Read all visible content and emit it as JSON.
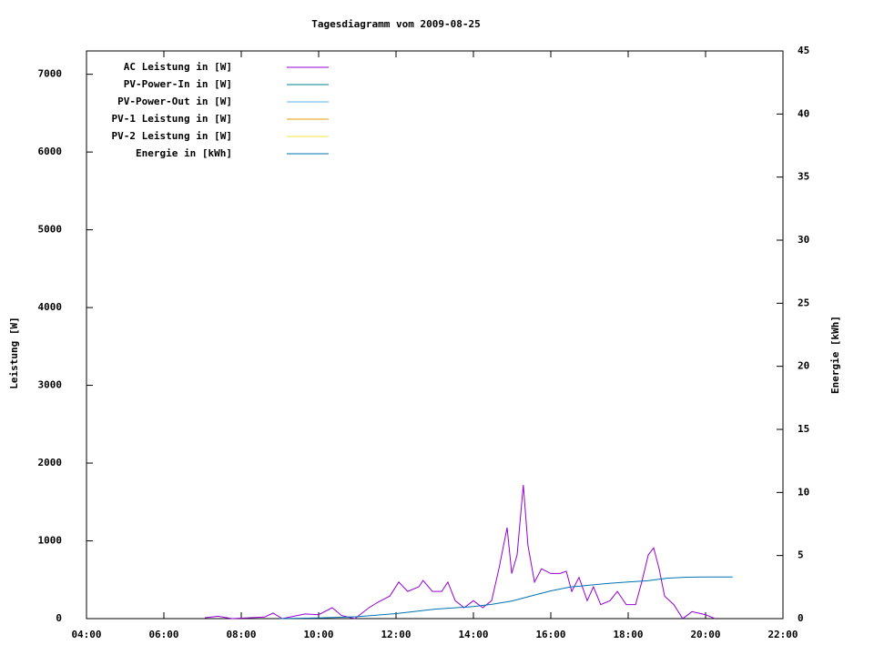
{
  "chart_data": {
    "type": "line",
    "title": "Tagesdiagramm vom 2009-08-25",
    "y_label": "Leistung [W]",
    "y2_label": "Energie [kWh]",
    "xlim": [
      4,
      22
    ],
    "xticks": [
      {
        "value": 4,
        "label": "04:00"
      },
      {
        "value": 6,
        "label": "06:00"
      },
      {
        "value": 8,
        "label": "08:00"
      },
      {
        "value": 10,
        "label": "10:00"
      },
      {
        "value": 12,
        "label": "12:00"
      },
      {
        "value": 14,
        "label": "14:00"
      },
      {
        "value": 16,
        "label": "16:00"
      },
      {
        "value": 18,
        "label": "18:00"
      },
      {
        "value": 20,
        "label": "20:00"
      },
      {
        "value": 22,
        "label": "22:00"
      }
    ],
    "ylim": [
      0,
      7300
    ],
    "yticks": [
      0,
      1000,
      2000,
      3000,
      4000,
      5000,
      6000,
      7000
    ],
    "y2lim": [
      0,
      45
    ],
    "y2ticks": [
      0,
      5,
      10,
      15,
      20,
      25,
      30,
      35,
      40,
      45
    ],
    "legend": "top-left",
    "series": [
      {
        "name": "AC Leistung in [W]",
        "color": "#9400d3",
        "x": [
          7.06,
          7.4,
          7.76,
          8.6,
          8.82,
          9.06,
          9.65,
          10.0,
          10.35,
          10.59,
          10.94,
          11.3,
          11.53,
          11.84,
          12.07,
          12.3,
          12.59,
          12.7,
          12.94,
          13.18,
          13.34,
          13.53,
          13.76,
          14.0,
          14.24,
          14.47,
          14.66,
          14.87,
          14.99,
          15.13,
          15.29,
          15.41,
          15.58,
          15.76,
          16.0,
          16.24,
          16.4,
          16.54,
          16.73,
          16.94,
          17.1,
          17.29,
          17.53,
          17.72,
          17.95,
          18.19,
          18.35,
          18.52,
          18.66,
          18.8,
          18.94,
          19.18,
          19.41,
          19.65,
          20.0,
          20.24
        ],
        "values": [
          10,
          30,
          0,
          20,
          70,
          0,
          60,
          50,
          140,
          40,
          0,
          140,
          210,
          290,
          470,
          350,
          410,
          490,
          350,
          350,
          470,
          230,
          140,
          230,
          140,
          230,
          640,
          1170,
          580,
          820,
          1720,
          940,
          470,
          640,
          580,
          580,
          610,
          350,
          530,
          230,
          410,
          180,
          230,
          350,
          180,
          180,
          470,
          820,
          910,
          640,
          290,
          180,
          0,
          90,
          50,
          0
        ]
      },
      {
        "name": "PV-Power-In in [W]",
        "color": "#00808f",
        "x": [],
        "values": []
      },
      {
        "name": "PV-Power-Out in [W]",
        "color": "#56b4e9",
        "x": [],
        "values": []
      },
      {
        "name": "PV-1 Leistung in [W]",
        "color": "#e69f00",
        "x": [],
        "values": []
      },
      {
        "name": "PV-2 Leistung in [W]",
        "color": "#f0e442",
        "x": [],
        "values": []
      },
      {
        "name": "Energie in [kWh]",
        "color": "#0072b2",
        "axis": "y2",
        "x": [
          9,
          10,
          11,
          12,
          13,
          14,
          14.5,
          15,
          15.5,
          16,
          16.5,
          17,
          17.5,
          18,
          18.5,
          19,
          19.5,
          20,
          20.7
        ],
        "values": [
          0,
          0.05,
          0.15,
          0.4,
          0.75,
          0.95,
          1.15,
          1.4,
          1.8,
          2.2,
          2.5,
          2.65,
          2.8,
          2.9,
          3.0,
          3.2,
          3.28,
          3.3,
          3.3
        ]
      }
    ]
  }
}
